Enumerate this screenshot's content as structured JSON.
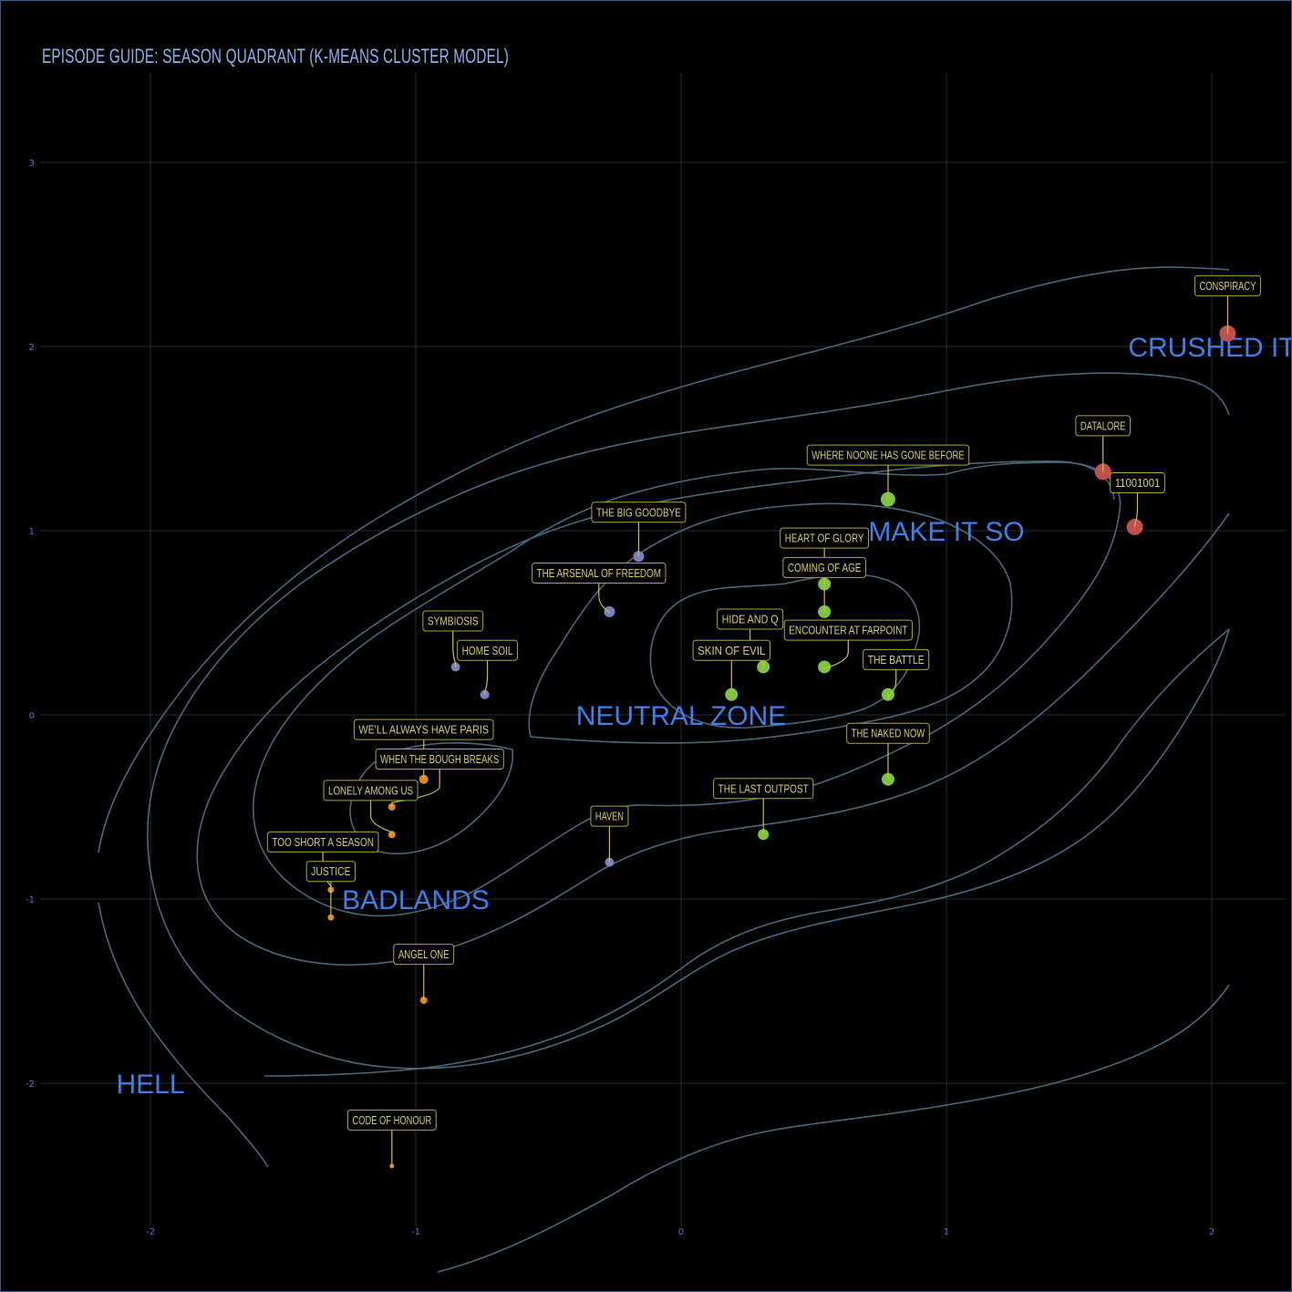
{
  "chart_data": {
    "type": "scatter",
    "title": "EPISODE GUIDE: SEASON QUADRANT (K-MEANS CLUSTER MODEL)",
    "xlabel": "",
    "ylabel": "",
    "xlim": [
      -2.4,
      2.4
    ],
    "ylim": [
      -2.6,
      3.5
    ],
    "grid": true,
    "x_ticks": [
      -2,
      -1,
      0,
      1,
      2
    ],
    "y_ticks": [
      -2,
      -1,
      0,
      1,
      2,
      3
    ],
    "x_tick_labels": [
      "-2",
      "-1",
      "0",
      "1",
      "2"
    ],
    "y_tick_labels": [
      "-2",
      "-1",
      "0",
      "1",
      "2",
      "3"
    ],
    "colors": {
      "red": "#c0504d",
      "green": "#7cc442",
      "purple": "#7b7fc0",
      "orange": "#e08a18",
      "region": "#3f7fe6",
      "label_text": "#d6d060",
      "contour": "#4a6878"
    },
    "regions": [
      {
        "label": "CRUSHED IT",
        "x": 2.0,
        "y": 2.0
      },
      {
        "label": "MAKE IT SO",
        "x": 1.0,
        "y": 1.0
      },
      {
        "label": "NEUTRAL ZONE",
        "x": 0.0,
        "y": 0.0
      },
      {
        "label": "BADLANDS",
        "x": -1.0,
        "y": -1.0
      },
      {
        "label": "HELL",
        "x": -2.0,
        "y": -2.0
      }
    ],
    "points": [
      {
        "name": "CONSPIRACY",
        "x": 2.06,
        "y": 2.07,
        "cluster": "red",
        "size": 9,
        "lx": 2.06,
        "ly": 2.33
      },
      {
        "name": "DATALORE",
        "x": 1.59,
        "y": 1.32,
        "cluster": "red",
        "size": 9,
        "lx": 1.59,
        "ly": 1.57
      },
      {
        "name": "11001001",
        "x": 1.71,
        "y": 1.02,
        "cluster": "red",
        "size": 9,
        "lx": 1.72,
        "ly": 1.26
      },
      {
        "name": "WHERE NOONE HAS GONE BEFORE",
        "x": 0.78,
        "y": 1.17,
        "cluster": "green",
        "size": 8,
        "lx": 0.78,
        "ly": 1.41
      },
      {
        "name": "HEART OF GLORY",
        "x": 0.54,
        "y": 0.71,
        "cluster": "green",
        "size": 7,
        "lx": 0.54,
        "ly": 0.96
      },
      {
        "name": "COMING OF AGE",
        "x": 0.54,
        "y": 0.56,
        "cluster": "green",
        "size": 7,
        "lx": 0.54,
        "ly": 0.8
      },
      {
        "name": "ENCOUNTER AT FARPOINT",
        "x": 0.54,
        "y": 0.26,
        "cluster": "green",
        "size": 7,
        "lx": 0.63,
        "ly": 0.46
      },
      {
        "name": "HIDE AND Q",
        "x": 0.31,
        "y": 0.26,
        "cluster": "green",
        "size": 7,
        "lx": 0.26,
        "ly": 0.52
      },
      {
        "name": "SKIN OF EVIL",
        "x": 0.19,
        "y": 0.11,
        "cluster": "green",
        "size": 7,
        "lx": 0.19,
        "ly": 0.35
      },
      {
        "name": "THE BATTLE",
        "x": 0.78,
        "y": 0.11,
        "cluster": "green",
        "size": 7,
        "lx": 0.81,
        "ly": 0.3
      },
      {
        "name": "THE NAKED NOW",
        "x": 0.78,
        "y": -0.35,
        "cluster": "green",
        "size": 7,
        "lx": 0.78,
        "ly": -0.1
      },
      {
        "name": "THE LAST OUTPOST",
        "x": 0.31,
        "y": -0.65,
        "cluster": "green",
        "size": 6,
        "lx": 0.31,
        "ly": -0.4
      },
      {
        "name": "THE BIG GOODBYE",
        "x": -0.16,
        "y": 0.86,
        "cluster": "purple",
        "size": 6,
        "lx": -0.16,
        "ly": 1.1
      },
      {
        "name": "THE ARSENAL OF FREEDOM",
        "x": -0.27,
        "y": 0.56,
        "cluster": "purple",
        "size": 6,
        "lx": -0.31,
        "ly": 0.77
      },
      {
        "name": "SYMBIOSIS",
        "x": -0.85,
        "y": 0.26,
        "cluster": "purple",
        "size": 5,
        "lx": -0.86,
        "ly": 0.51
      },
      {
        "name": "HOME SOIL",
        "x": -0.74,
        "y": 0.11,
        "cluster": "purple",
        "size": 5,
        "lx": -0.73,
        "ly": 0.35
      },
      {
        "name": "HAVEN",
        "x": -0.27,
        "y": -0.8,
        "cluster": "purple",
        "size": 5,
        "lx": -0.27,
        "ly": -0.55
      },
      {
        "name": "WE'LL ALWAYS HAVE PARIS",
        "x": -0.97,
        "y": -0.35,
        "cluster": "orange",
        "size": 5,
        "lx": -0.97,
        "ly": -0.08
      },
      {
        "name": "WHEN THE BOUGH BREAKS",
        "x": -1.09,
        "y": -0.5,
        "cluster": "orange",
        "size": 4,
        "lx": -0.91,
        "ly": -0.24
      },
      {
        "name": "LONELY AMONG US",
        "x": -1.09,
        "y": -0.65,
        "cluster": "orange",
        "size": 4,
        "lx": -1.17,
        "ly": -0.41
      },
      {
        "name": "TOO SHORT A SEASON",
        "x": -1.32,
        "y": -0.95,
        "cluster": "orange",
        "size": 3.5,
        "lx": -1.35,
        "ly": -0.69
      },
      {
        "name": "JUSTICE",
        "x": -1.32,
        "y": -1.1,
        "cluster": "orange",
        "size": 3.5,
        "lx": -1.32,
        "ly": -0.85
      },
      {
        "name": "ANGEL ONE",
        "x": -0.97,
        "y": -1.55,
        "cluster": "orange",
        "size": 4,
        "lx": -0.97,
        "ly": -1.3
      },
      {
        "name": "CODE OF HONOUR",
        "x": -1.09,
        "y": -2.45,
        "cluster": "orange",
        "size": 2.5,
        "lx": -1.09,
        "ly": -2.2
      }
    ]
  }
}
